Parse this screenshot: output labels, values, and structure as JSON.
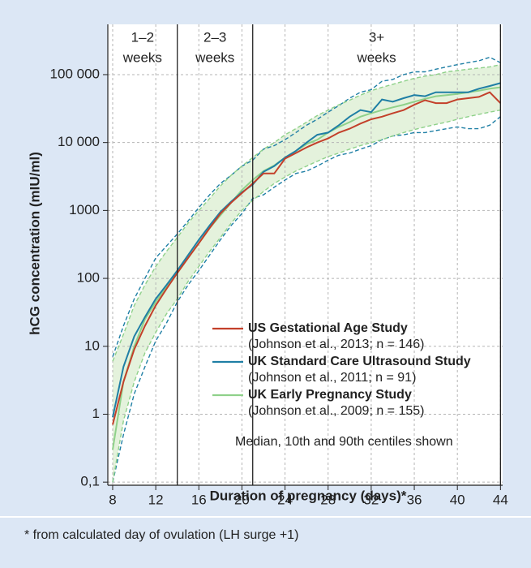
{
  "chart_data": {
    "type": "line",
    "y_log": true,
    "x_label": "Duration of pregnancy (days)*",
    "y_label": "hCG concentration (mIU/ml)",
    "footnote": "* from calculated day of ovulation (LH surge +1)",
    "legend_note": "Median, 10th and 90th centiles shown",
    "legend_position": "lower right",
    "grid": true,
    "dividers": [
      14,
      21,
      44
    ],
    "period_labels": [
      [
        "1–2",
        "weeks"
      ],
      [
        "2–3",
        "weeks"
      ],
      [
        "3+",
        "weeks"
      ]
    ],
    "xlim": [
      7.55,
      44.2
    ],
    "xticks": [
      8,
      12,
      16,
      20,
      24,
      28,
      32,
      36,
      40,
      44
    ],
    "ylim": [
      0.09,
      550000
    ],
    "yticks": [
      {
        "value": 0.1,
        "label": "0,1"
      },
      1,
      10,
      100,
      1000,
      {
        "value": 10000,
        "label": "10 000"
      },
      {
        "value": 100000,
        "label": "100 000"
      }
    ],
    "band_color": "#e4f2dc",
    "band_series": 2,
    "x": [
      8,
      9,
      10,
      11,
      12,
      13,
      14,
      15,
      16,
      17,
      18,
      19,
      20,
      21,
      22,
      23,
      24,
      25,
      26,
      27,
      28,
      29,
      30,
      31,
      32,
      33,
      34,
      35,
      36,
      37,
      38,
      39,
      40,
      41,
      42,
      43,
      44
    ],
    "series": [
      {
        "name": "US Gestational Age Study",
        "note": "(Johnson et al., 2013; n = 146)",
        "color": "#c3402a",
        "values": [
          0.7,
          3,
          9,
          20,
          40,
          70,
          120,
          200,
          330,
          550,
          900,
          1300,
          1800,
          2500,
          3500,
          3500,
          5800,
          7000,
          8500,
          10000,
          11500,
          14000,
          16000,
          19000,
          22000,
          24000,
          27000,
          30000,
          36000,
          42000,
          38000,
          38000,
          43000,
          45000,
          47000,
          55000,
          38000
        ]
      },
      {
        "name": "UK Standard Care Ultrasound Study",
        "note": "(Johnson et al., 2011; n = 91)",
        "color": "#1f7fa5",
        "values": [
          0.9,
          5,
          14,
          27,
          50,
          80,
          130,
          220,
          370,
          600,
          950,
          1350,
          1850,
          2400,
          3700,
          4500,
          6000,
          7500,
          10000,
          13000,
          14000,
          18000,
          24000,
          30000,
          28000,
          43000,
          40000,
          45000,
          50000,
          48000,
          55000,
          55000,
          55000,
          55000,
          62000,
          68000,
          75000
        ],
        "p10": [
          0.1,
          0.5,
          2,
          5,
          12,
          22,
          45,
          80,
          130,
          220,
          370,
          600,
          900,
          1500,
          1700,
          2200,
          2800,
          3500,
          3800,
          4500,
          5500,
          6500,
          7000,
          8000,
          9000,
          11000,
          12500,
          13000,
          14000,
          14000,
          15000,
          16000,
          17000,
          16000,
          16000,
          18000,
          24000
        ],
        "p90": [
          7,
          20,
          50,
          100,
          200,
          300,
          450,
          700,
          1100,
          1700,
          2500,
          3300,
          4500,
          5500,
          8000,
          9000,
          11000,
          14000,
          18000,
          22000,
          28000,
          35000,
          45000,
          55000,
          60000,
          80000,
          85000,
          100000,
          110000,
          110000,
          120000,
          130000,
          140000,
          150000,
          160000,
          180000,
          150000
        ]
      },
      {
        "name": "UK Early Pregnancy Study",
        "note": "(Johnson et al., 2009; n = 155)",
        "color": "#8fd18a",
        "values": [
          0.3,
          3,
          10,
          25,
          45,
          75,
          120,
          200,
          330,
          550,
          850,
          1300,
          2000,
          2800,
          3800,
          4600,
          6000,
          7500,
          9500,
          11000,
          14000,
          17000,
          20000,
          24000,
          27000,
          30000,
          33000,
          36000,
          40000,
          44000,
          48000,
          50000,
          52000,
          55000,
          58000,
          62000,
          65000
        ],
        "p10": [
          0.1,
          0.8,
          3,
          8,
          16,
          30,
          50,
          90,
          150,
          250,
          400,
          650,
          1000,
          1400,
          1900,
          2500,
          3100,
          3800,
          4500,
          5300,
          6200,
          7000,
          8000,
          9000,
          10000,
          11000,
          12500,
          14000,
          15500,
          17000,
          18500,
          20000,
          22000,
          24000,
          26000,
          28000,
          30000
        ],
        "p90": [
          6,
          15,
          40,
          80,
          150,
          250,
          400,
          650,
          1000,
          1500,
          2300,
          3300,
          4500,
          6000,
          8000,
          10000,
          13000,
          16000,
          20000,
          25000,
          30000,
          36000,
          42000,
          50000,
          58000,
          65000,
          72000,
          80000,
          88000,
          95000,
          100000,
          110000,
          115000,
          120000,
          125000,
          130000,
          140000
        ]
      }
    ]
  }
}
